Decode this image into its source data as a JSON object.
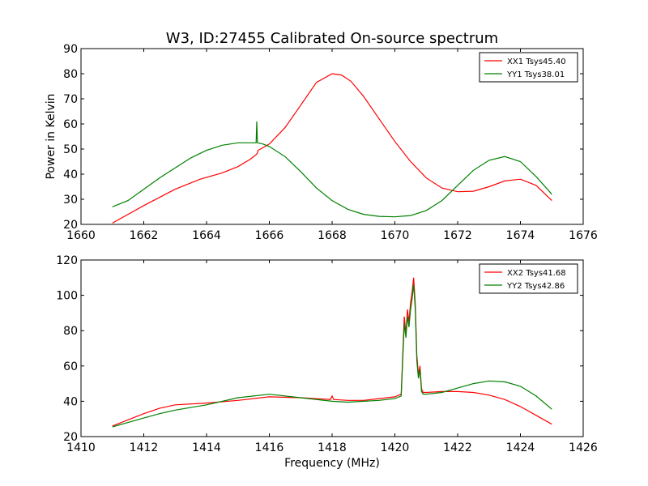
{
  "title": "W3, ID:27455 Calibrated On-source spectrum",
  "chart_data": [
    {
      "type": "line",
      "ylabel": "Power in Kelvin",
      "xlabel": "",
      "xlim": [
        1660,
        1676
      ],
      "ylim": [
        20,
        90
      ],
      "xticks": [
        1660,
        1662,
        1664,
        1666,
        1668,
        1670,
        1672,
        1674,
        1676
      ],
      "yticks": [
        20,
        30,
        40,
        50,
        60,
        70,
        80,
        90
      ],
      "legend_position": "top-right",
      "series": [
        {
          "name": "XX1 Tsys45.40",
          "color": "#ff0000",
          "x": [
            1661.0,
            1662.0,
            1663.0,
            1663.8,
            1664.5,
            1665.0,
            1665.4,
            1665.6,
            1665.62,
            1665.64,
            1666.0,
            1666.5,
            1667.0,
            1667.5,
            1668.0,
            1668.3,
            1668.6,
            1669.0,
            1669.5,
            1670.0,
            1670.5,
            1671.0,
            1671.5,
            1672.0,
            1672.5,
            1673.0,
            1673.5,
            1674.0,
            1674.5,
            1675.0
          ],
          "y": [
            20.5,
            27.5,
            34.0,
            38.0,
            40.5,
            43.0,
            46.0,
            48.0,
            48.5,
            49.5,
            52.0,
            58.5,
            67.5,
            76.5,
            80.0,
            79.5,
            77.0,
            71.0,
            62.0,
            53.0,
            45.0,
            38.5,
            34.5,
            33.0,
            33.2,
            35.0,
            37.3,
            38.0,
            35.5,
            29.5
          ]
        },
        {
          "name": "YY1 Tsys38.01",
          "color": "#008000",
          "x": [
            1661.0,
            1661.5,
            1662.0,
            1662.5,
            1663.0,
            1663.5,
            1664.0,
            1664.5,
            1665.0,
            1665.4,
            1665.58,
            1665.6,
            1665.62,
            1665.8,
            1666.0,
            1666.5,
            1667.0,
            1667.5,
            1668.0,
            1668.5,
            1669.0,
            1669.5,
            1670.0,
            1670.5,
            1671.0,
            1671.5,
            1672.0,
            1672.5,
            1673.0,
            1673.5,
            1674.0,
            1674.5,
            1675.0
          ],
          "y": [
            27.0,
            29.5,
            34.0,
            38.5,
            42.5,
            46.5,
            49.5,
            51.5,
            52.5,
            52.5,
            52.5,
            61.0,
            52.5,
            52.0,
            51.0,
            47.0,
            41.0,
            34.5,
            29.5,
            26.0,
            24.0,
            23.2,
            23.0,
            23.5,
            25.5,
            29.5,
            35.5,
            41.5,
            45.5,
            47.0,
            45.0,
            39.0,
            32.0
          ]
        }
      ]
    },
    {
      "type": "line",
      "ylabel": "",
      "xlabel": "Frequency (MHz)",
      "xlim": [
        1410,
        1426
      ],
      "ylim": [
        20,
        120
      ],
      "xticks": [
        1410,
        1412,
        1414,
        1416,
        1418,
        1420,
        1422,
        1424,
        1426
      ],
      "yticks": [
        20,
        40,
        60,
        80,
        100,
        120
      ],
      "legend_position": "top-right",
      "series": [
        {
          "name": "XX2 Tsys41.68",
          "color": "#ff0000",
          "x": [
            1411.0,
            1411.5,
            1412.0,
            1412.5,
            1413.0,
            1414.0,
            1415.0,
            1416.0,
            1417.0,
            1417.95,
            1418.0,
            1418.05,
            1418.5,
            1419.0,
            1419.5,
            1420.0,
            1420.2,
            1420.3,
            1420.35,
            1420.4,
            1420.45,
            1420.5,
            1420.55,
            1420.6,
            1420.65,
            1420.7,
            1420.75,
            1420.8,
            1420.85,
            1420.9,
            1421.0,
            1421.5,
            1422.0,
            1422.5,
            1423.0,
            1423.5,
            1424.0,
            1424.5,
            1425.0
          ],
          "y": [
            26.0,
            29.5,
            33.0,
            36.0,
            38.0,
            39.0,
            40.5,
            42.5,
            42.0,
            41.0,
            43.0,
            41.0,
            40.5,
            40.5,
            41.5,
            42.5,
            44.0,
            88.0,
            78.0,
            92.0,
            85.0,
            96.0,
            102.0,
            110.0,
            95.0,
            66.0,
            55.0,
            60.0,
            47.0,
            45.0,
            45.0,
            45.5,
            45.5,
            45.0,
            43.5,
            41.0,
            37.0,
            32.0,
            27.0
          ]
        },
        {
          "name": "YY2 Tsys42.86",
          "color": "#008000",
          "x": [
            1411.0,
            1411.5,
            1412.0,
            1412.5,
            1413.0,
            1414.0,
            1415.0,
            1416.0,
            1417.0,
            1418.0,
            1418.5,
            1419.0,
            1419.5,
            1420.0,
            1420.2,
            1420.3,
            1420.35,
            1420.4,
            1420.45,
            1420.5,
            1420.55,
            1420.6,
            1420.65,
            1420.7,
            1420.75,
            1420.8,
            1420.85,
            1420.9,
            1421.0,
            1421.5,
            1422.0,
            1422.5,
            1423.0,
            1423.5,
            1424.0,
            1424.5,
            1425.0
          ],
          "y": [
            25.5,
            28.0,
            30.5,
            33.0,
            35.0,
            38.0,
            42.0,
            44.0,
            42.0,
            40.0,
            39.5,
            40.0,
            40.5,
            41.5,
            43.0,
            84.0,
            76.0,
            88.0,
            82.0,
            92.0,
            98.0,
            106.0,
            92.0,
            63.0,
            53.0,
            58.0,
            45.5,
            44.0,
            44.0,
            45.0,
            47.5,
            50.0,
            51.5,
            51.0,
            48.5,
            43.0,
            35.5
          ]
        }
      ]
    }
  ]
}
